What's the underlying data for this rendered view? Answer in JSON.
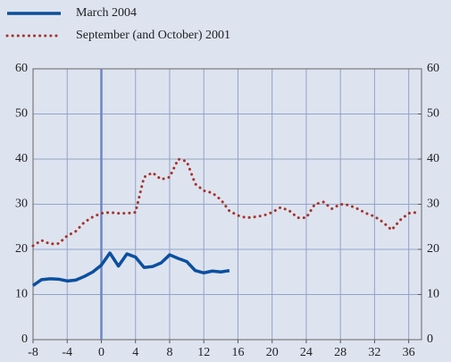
{
  "chart_data": {
    "type": "line",
    "series": [
      {
        "name": "March 2004",
        "color": "#0b4f9e",
        "style": "solid",
        "x": [
          -8,
          -7,
          -6,
          -5,
          -4,
          -3,
          -2,
          -1,
          0,
          1,
          2,
          3,
          4,
          5,
          6,
          7,
          8,
          9,
          10,
          11,
          12,
          13,
          14,
          15
        ],
        "values": [
          12,
          13.3,
          13.5,
          13.4,
          13,
          13.2,
          14,
          15,
          16.5,
          19.2,
          16.3,
          19,
          18.3,
          16,
          16.2,
          17,
          18.8,
          18,
          17.3,
          15.3,
          14.8,
          15.2,
          15,
          15.3
        ]
      },
      {
        "name": "September (and October) 2001",
        "color": "#a3342b",
        "style": "dotted",
        "x": [
          -8,
          -7,
          -6,
          -5,
          -4,
          -3,
          -2,
          -1,
          0,
          1,
          2,
          3,
          4,
          5,
          6,
          7,
          8,
          9,
          10,
          11,
          12,
          13,
          14,
          15,
          16,
          17,
          18,
          19,
          20,
          21,
          22,
          23,
          24,
          25,
          26,
          27,
          28,
          29,
          30,
          31,
          32,
          33,
          34,
          35,
          36,
          37
        ],
        "values": [
          20.8,
          22,
          21.2,
          21.3,
          23,
          24,
          26,
          27.2,
          28,
          28.2,
          28,
          28,
          28.2,
          36,
          37,
          35.5,
          36,
          40,
          39.5,
          34.5,
          33,
          32.5,
          31,
          28.5,
          27.5,
          27,
          27.2,
          27.5,
          28.2,
          29.3,
          28.6,
          27,
          27,
          30,
          30.5,
          29,
          30,
          29.8,
          29,
          28,
          27.3,
          26,
          24.3,
          26.5,
          28,
          28.2
        ]
      }
    ],
    "xlim": [
      -8,
      37.5
    ],
    "xticks": [
      -8,
      -4,
      0,
      4,
      8,
      12,
      16,
      20,
      24,
      28,
      32,
      36
    ],
    "ylim": [
      0,
      60
    ],
    "yticks": [
      0,
      10,
      20,
      30,
      40,
      50,
      60
    ],
    "y2lim": [
      0,
      60
    ],
    "y2ticks": [
      0,
      10,
      20,
      30,
      40,
      50,
      60
    ],
    "vline": 0,
    "grid": true,
    "legend": "top-left"
  }
}
